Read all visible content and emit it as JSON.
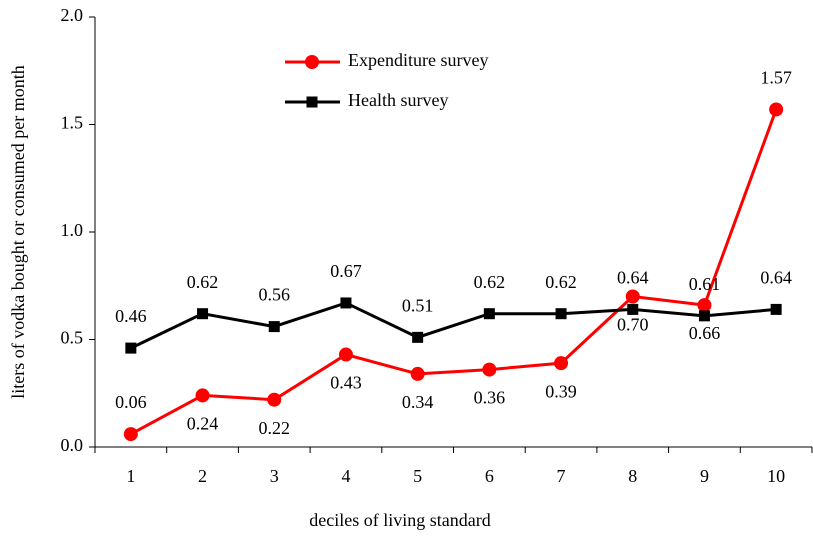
{
  "chart_data": {
    "type": "line",
    "x_label": "deciles of living standard",
    "y_label": "liters of vodka bought or consumed per month",
    "categories": [
      "1",
      "2",
      "3",
      "4",
      "5",
      "6",
      "7",
      "8",
      "9",
      "10"
    ],
    "series": [
      {
        "name": "Expenditure survey",
        "color": "#ff0000",
        "marker": "circle",
        "values": [
          0.06,
          0.24,
          0.22,
          0.43,
          0.34,
          0.36,
          0.39,
          0.7,
          0.66,
          1.57
        ],
        "value_labels": [
          "0.06",
          "0.24",
          "0.22",
          "0.43",
          "0.34",
          "0.36",
          "0.39",
          "0.70",
          "0.66",
          "1.57"
        ]
      },
      {
        "name": "Health survey",
        "color": "#000000",
        "marker": "square",
        "values": [
          0.46,
          0.62,
          0.56,
          0.67,
          0.51,
          0.62,
          0.62,
          0.64,
          0.61,
          0.64
        ]
      }
    ],
    "ylim": [
      0,
      2
    ],
    "yticks": [
      {
        "value": 0,
        "label": "0.0"
      },
      {
        "value": 0.5,
        "label": "0.5"
      },
      {
        "value": 1,
        "label": "1.0"
      },
      {
        "value": 1.5,
        "label": "1.5"
      },
      {
        "value": 2,
        "label": "2.0"
      }
    ],
    "grid": false
  }
}
